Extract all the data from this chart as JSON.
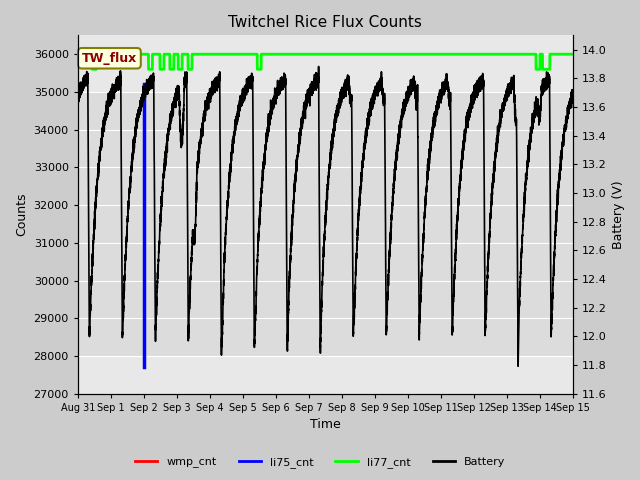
{
  "title": "Twitchel Rice Flux Counts",
  "xlabel": "Time",
  "ylabel_left": "Counts",
  "ylabel_right": "Battery (V)",
  "ylim_left": [
    27000,
    36500
  ],
  "ylim_right": [
    11.6,
    14.1
  ],
  "yticks_left": [
    27000,
    28000,
    29000,
    30000,
    31000,
    32000,
    33000,
    34000,
    35000,
    36000
  ],
  "yticks_right": [
    11.6,
    11.8,
    12.0,
    12.2,
    12.4,
    12.6,
    12.8,
    13.0,
    13.2,
    13.4,
    13.6,
    13.8,
    14.0
  ],
  "xtick_labels": [
    "Aug 31",
    "Sep 1",
    "Sep 2",
    "Sep 3",
    "Sep 4",
    "Sep 5",
    "Sep 6",
    "Sep 7",
    "Sep 8",
    "Sep 9",
    "Sep 10",
    "Sep 11",
    "Sep 12",
    "Sep 13",
    "Sep 14",
    "Sep 15"
  ],
  "bg_color": "#cccccc",
  "plot_bg_color": "#e8e8e8",
  "shaded_band_low": 28000,
  "shaded_band_high": 35000,
  "shaded_band_color": "#d0d0d0",
  "grid_color": "#f0f0f0",
  "wmp_cnt_color": "red",
  "li75_cnt_color": "blue",
  "li77_cnt_color": "lime",
  "battery_color": "black",
  "li75_cnt_linewidth": 2.5,
  "li77_cnt_linewidth": 2.0,
  "battery_linewidth": 1.2,
  "legend_ncol": 4,
  "num_days": 15,
  "figsize": [
    6.4,
    4.8
  ],
  "dpi": 100
}
